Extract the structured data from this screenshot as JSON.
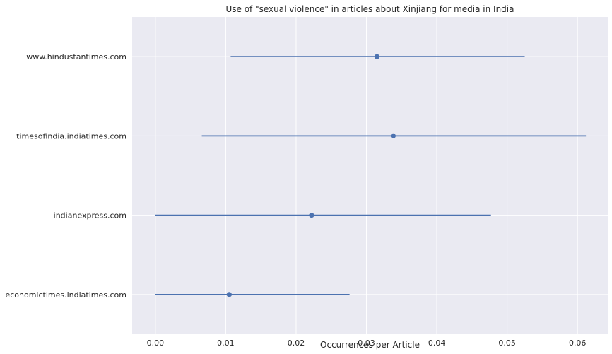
{
  "chart_data": {
    "type": "pointplot",
    "orientation": "horizontal",
    "title": "Use of \"sexual violence\" in articles about Xinjiang for media in India",
    "xlabel": "Occurrences per Article",
    "ylabel": "",
    "xlim": [
      -0.0033,
      0.0643
    ],
    "xticks": [
      0.0,
      0.01,
      0.02,
      0.03,
      0.04,
      0.05,
      0.06
    ],
    "xtick_labels": [
      "0.00",
      "0.01",
      "0.02",
      "0.03",
      "0.04",
      "0.05",
      "0.06"
    ],
    "grid": true,
    "background_color": "#eaeaf2",
    "series_color": "#4c72b0",
    "categories": [
      "www.hindustantimes.com",
      "timesofindia.indiatimes.com",
      "indianexpress.com",
      "economictimes.indiatimes.com"
    ],
    "values": [
      0.0315,
      0.0338,
      0.0222,
      0.0105
    ],
    "ci_low": [
      0.0107,
      0.0066,
      0.0,
      0.0
    ],
    "ci_high": [
      0.0525,
      0.0612,
      0.0477,
      0.0276
    ]
  }
}
